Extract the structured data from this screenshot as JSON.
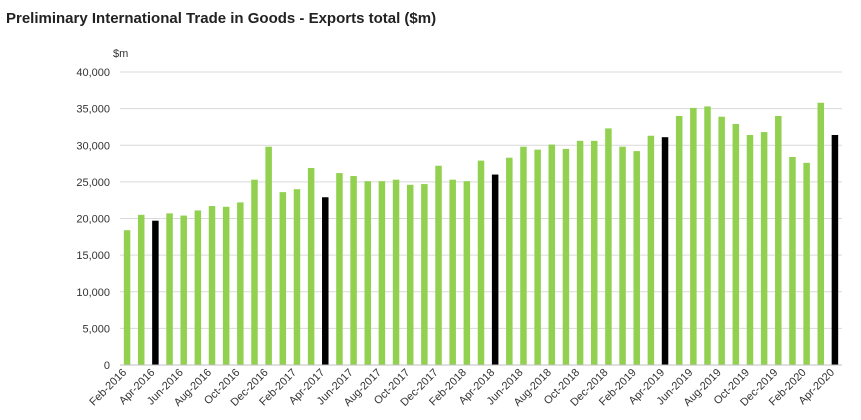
{
  "chart_data": {
    "type": "bar",
    "title": "Preliminary International Trade in Goods - Exports total ($m)",
    "ylabel": "$m",
    "xlabel": "",
    "ylim": [
      0,
      40000
    ],
    "yticks": [
      0,
      5000,
      10000,
      15000,
      20000,
      25000,
      30000,
      35000,
      40000
    ],
    "ytick_labels": [
      "0",
      "5,000",
      "10,000",
      "15,000",
      "20,000",
      "25,000",
      "30,000",
      "35,000",
      "40,000"
    ],
    "grid": true,
    "legend": "none",
    "categories": [
      "Feb-2016",
      "Mar-2016",
      "Apr-2016",
      "May-2016",
      "Jun-2016",
      "Jul-2016",
      "Aug-2016",
      "Sep-2016",
      "Oct-2016",
      "Nov-2016",
      "Dec-2016",
      "Jan-2017",
      "Feb-2017",
      "Mar-2017",
      "Apr-2017",
      "May-2017",
      "Jun-2017",
      "Jul-2017",
      "Aug-2017",
      "Sep-2017",
      "Oct-2017",
      "Nov-2017",
      "Dec-2017",
      "Jan-2018",
      "Feb-2018",
      "Mar-2018",
      "Apr-2018",
      "May-2018",
      "Jun-2018",
      "Jul-2018",
      "Aug-2018",
      "Sep-2018",
      "Oct-2018",
      "Nov-2018",
      "Dec-2018",
      "Jan-2019",
      "Feb-2019",
      "Mar-2019",
      "Apr-2019",
      "May-2019",
      "Jun-2019",
      "Jul-2019",
      "Aug-2019",
      "Sep-2019",
      "Oct-2019",
      "Nov-2019",
      "Dec-2019",
      "Jan-2020",
      "Feb-2020",
      "Mar-2020",
      "Apr-2020"
    ],
    "xtick_labels": [
      "Feb-2016",
      "Apr-2016",
      "Jun-2016",
      "Aug-2016",
      "Oct-2016",
      "Dec-2016",
      "Feb-2017",
      "Apr-2017",
      "Jun-2017",
      "Aug-2017",
      "Oct-2017",
      "Dec-2017",
      "Feb-2018",
      "Apr-2018",
      "Jun-2018",
      "Aug-2018",
      "Oct-2018",
      "Dec-2018",
      "Feb-2019",
      "Apr-2019",
      "Jun-2019",
      "Aug-2019",
      "Oct-2019",
      "Dec-2019",
      "Feb-2020",
      "Apr-2020"
    ],
    "values": [
      18400,
      20500,
      19700,
      20700,
      20400,
      21100,
      21700,
      21600,
      22200,
      25300,
      29800,
      23600,
      24000,
      26900,
      22900,
      26200,
      25800,
      25100,
      25100,
      25300,
      24600,
      24700,
      27200,
      25300,
      25100,
      27900,
      26000,
      28300,
      29800,
      29400,
      30100,
      29500,
      30600,
      30600,
      32300,
      29800,
      29200,
      31300,
      31100,
      34000,
      35100,
      35300,
      33900,
      32900,
      31400,
      31800,
      34000,
      28400,
      27600,
      35800,
      31400
    ],
    "colors": {
      "default_bar": "#92d050",
      "highlight_bar": "#000000",
      "gridline": "#d9d9d9",
      "axis": "#bfbfbf"
    },
    "highlighted_categories": [
      "Apr-2016",
      "Apr-2017",
      "Apr-2018",
      "Apr-2019",
      "Apr-2020"
    ]
  }
}
